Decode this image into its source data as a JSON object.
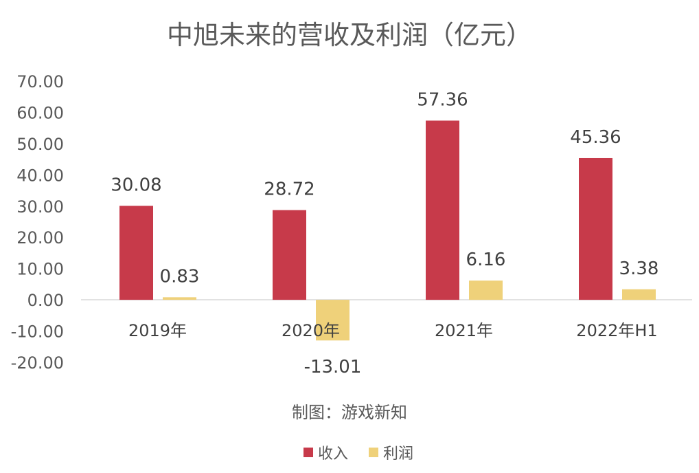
{
  "chart_data": {
    "type": "bar",
    "title": "中旭未来的营收及利润（亿元）",
    "categories": [
      "2019年",
      "2020年",
      "2021年",
      "2022年H1"
    ],
    "series": [
      {
        "name": "收入",
        "values": [
          30.08,
          28.72,
          57.36,
          45.36
        ],
        "labels": [
          "30.08",
          "28.72",
          "57.36",
          "45.36"
        ],
        "color": "#C73A4A"
      },
      {
        "name": "利润",
        "values": [
          0.83,
          -13.01,
          6.16,
          3.38
        ],
        "labels": [
          "0.83",
          "-13.01",
          "6.16",
          "3.38"
        ],
        "color": "#EFD17A"
      }
    ],
    "ylim": [
      -20,
      70
    ],
    "yticks": [
      70,
      60,
      50,
      40,
      30,
      20,
      10,
      0,
      -10,
      -20
    ],
    "ytick_labels": [
      "70.00",
      "60.00",
      "50.00",
      "40.00",
      "30.00",
      "20.00",
      "10.00",
      "0.00",
      "-10.00",
      "-20.00"
    ],
    "grid": false,
    "legend_position": "bottom",
    "annotation": "制图：游戏新知"
  }
}
